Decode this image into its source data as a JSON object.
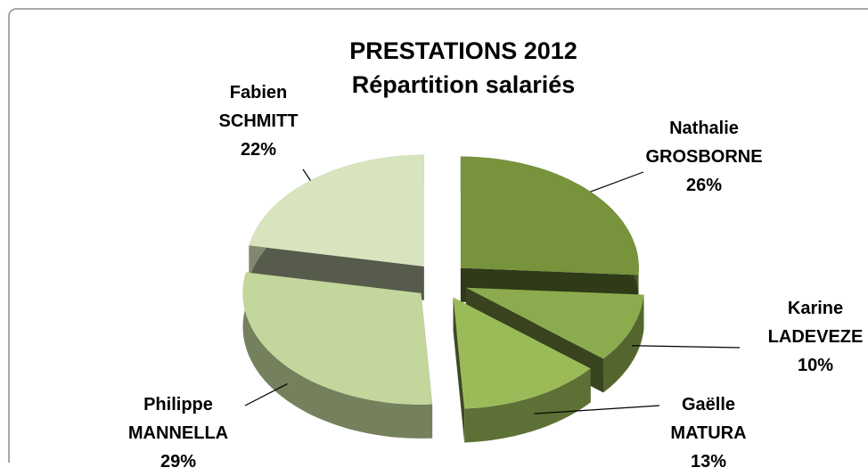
{
  "chart_data": {
    "type": "pie",
    "title": "PRESTATIONS 2012",
    "subtitle": "Répartition salariés",
    "categories": [
      "Nathalie GROSBORNE",
      "Karine LADEVEZE",
      "Gaëlle MATURA",
      "Philippe MANNELLA",
      "Fabien SCHMITT"
    ],
    "values": [
      26,
      10,
      13,
      29,
      22
    ],
    "value_labels": [
      "26%",
      "10%",
      "13%",
      "29%",
      "22%"
    ],
    "colors": [
      "#77933c",
      "#8cab4e",
      "#9bbb59",
      "#c3d69b",
      "#d7e4bd"
    ]
  }
}
